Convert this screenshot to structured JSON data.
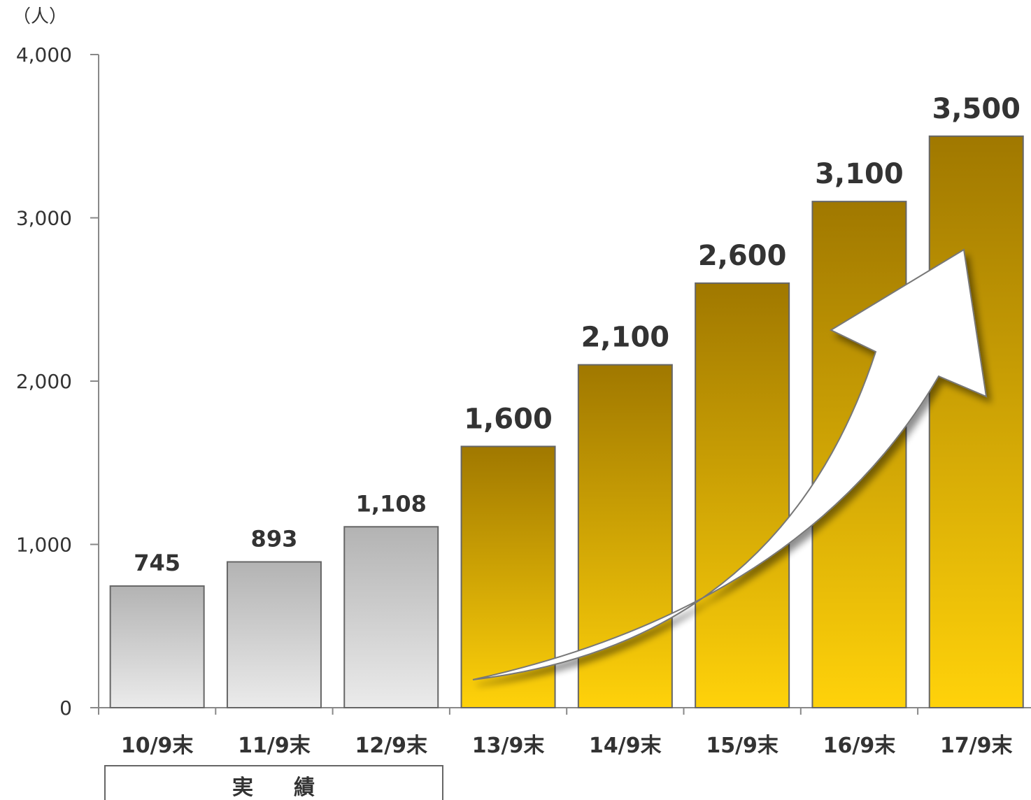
{
  "chart_data": {
    "type": "bar",
    "unit_label": "（人）",
    "categories": [
      "10/9末",
      "11/9末",
      "12/9末",
      "13/9末",
      "14/9末",
      "15/9末",
      "16/9末",
      "17/9末"
    ],
    "values": [
      745,
      893,
      1108,
      1600,
      2100,
      2600,
      3100,
      3500
    ],
    "value_labels": [
      "745",
      "893",
      "1,108",
      "1,600",
      "2,100",
      "2,600",
      "3,100",
      "3,500"
    ],
    "ylim": [
      0,
      4000
    ],
    "y_ticks": [
      0,
      1000,
      2000,
      3000,
      4000
    ],
    "y_tick_labels": [
      "0",
      "1,000",
      "2,000",
      "3,000",
      "4,000"
    ],
    "actual_count": 3,
    "group_label": "実　績",
    "grid": false,
    "colors": {
      "actual_top": "#b3b3b3",
      "actual_bottom": "#ebebeb",
      "plan_top": "#a07800",
      "plan_bottom": "#ffd20a",
      "bar_stroke": "#666666",
      "arrow_fill": "#ffffff",
      "arrow_stroke": "#777777"
    }
  }
}
